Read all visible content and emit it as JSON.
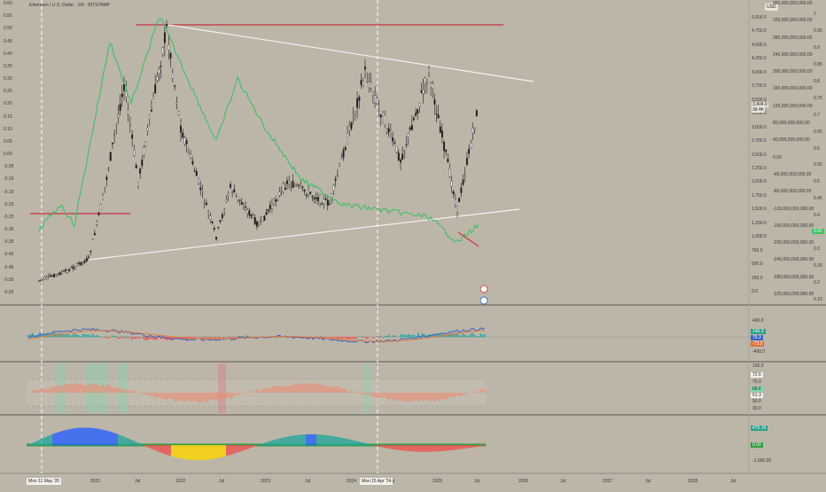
{
  "header": {
    "title": "Ethereum / U.S. Dollar · 1W · BITSTAMP",
    "currency": "USD"
  },
  "left_axis_ticks": [
    "0.60",
    "0.55",
    "0.50",
    "0.45",
    "0.40",
    "0.35",
    "0.30",
    "0.25",
    "0.20",
    "0.15",
    "0.10",
    "0.05",
    "0.00",
    "-0.05",
    "-0.10",
    "-0.15",
    "-0.20",
    "-0.25",
    "-0.30",
    "-0.35",
    "-0.40",
    "-0.45",
    "-0.50",
    "-0.55"
  ],
  "price_axis_ticks": [
    "5,000.0",
    "4,750.0",
    "4,500.0",
    "4,250.0",
    "4,000.0",
    "3,750.0",
    "3,500.0",
    "3,250.0",
    "3,000.0",
    "2,750.0",
    "2,500.0",
    "2,250.0",
    "2,000.0",
    "1,750.0",
    "1,500.0",
    "1,250.0",
    "1,000.0",
    "750.0",
    "500.0",
    "250.0",
    "0.0"
  ],
  "big_axis_ticks": [
    "360,000,000,000.00",
    "320,000,000,000.00",
    "280,000,000,000.00",
    "240,000,000,000.00",
    "200,000,000,000.00",
    "160,000,000,000.00",
    "120,000,000,000.00",
    "80,000,000,000.00",
    "40,000,000,000.00",
    "0.00",
    "-40,000,000,000.00",
    "-80,000,000,000.00",
    "-120,000,000,000.00",
    "-160,000,000,000.00",
    "-200,000,000,000.00",
    "-240,000,000,000.00",
    "-280,000,000,000.00",
    "-320,000,000,000.00"
  ],
  "small_axis_ticks": [
    "1",
    "0.95",
    "0.9",
    "0.85",
    "0.8",
    "0.75",
    "0.7",
    "0.65",
    "0.6",
    "0.55",
    "0.5",
    "0.45",
    "0.4",
    "0.35",
    "0.3",
    "0.25",
    "0.2",
    "0.15"
  ],
  "price_labels": [
    "3,404.9",
    "3d 4h"
  ],
  "right_badge": "0.91",
  "macd_axis_ticks": [
    "400.0",
    "-400.0"
  ],
  "macd_badges": [
    "146.3",
    "75.3",
    "-73.0"
  ],
  "rsi_axis_ticks": [
    "100.0",
    "75.0",
    "50.0",
    "30.0"
  ],
  "rsi_badges": [
    "72.6",
    "69.6",
    "51.3"
  ],
  "osc_axis_ticks": [
    "-1,000.00"
  ],
  "osc_badges": [
    "475.16",
    "0.00"
  ],
  "time_axis": [
    "2021",
    "Jul",
    "2022",
    "Jul",
    "2023",
    "Jul",
    "2024",
    "Jul",
    "2025",
    "Jul",
    "2026",
    "Jul",
    "2027",
    "Jul",
    "2028",
    "Jul"
  ],
  "time_highlights": [
    "Mon 11 May '20",
    "Mon 15 Apr '24"
  ],
  "chart_data": {
    "type": "line",
    "timeframe": "1W",
    "ylim": [
      0,
      5000
    ],
    "price_points": [
      {
        "date": "2020-05",
        "price": 200
      },
      {
        "date": "2020-09",
        "price": 380
      },
      {
        "date": "2020-12",
        "price": 600
      },
      {
        "date": "2021-02",
        "price": 1700
      },
      {
        "date": "2021-05",
        "price": 3800
      },
      {
        "date": "2021-07",
        "price": 2000
      },
      {
        "date": "2021-11",
        "price": 4800
      },
      {
        "date": "2022-01",
        "price": 3000
      },
      {
        "date": "2022-06",
        "price": 1000
      },
      {
        "date": "2022-08",
        "price": 1900
      },
      {
        "date": "2022-12",
        "price": 1200
      },
      {
        "date": "2023-04",
        "price": 2000
      },
      {
        "date": "2023-10",
        "price": 1600
      },
      {
        "date": "2024-03",
        "price": 4000
      },
      {
        "date": "2024-08",
        "price": 2400
      },
      {
        "date": "2024-12",
        "price": 4000
      },
      {
        "date": "2025-04",
        "price": 1500
      },
      {
        "date": "2025-07",
        "price": 3400
      }
    ],
    "indicator_points": [
      {
        "date": "2020-05",
        "value": -0.3
      },
      {
        "date": "2020-08",
        "value": -0.2
      },
      {
        "date": "2020-10",
        "value": -0.28
      },
      {
        "date": "2021-03",
        "value": 0.45
      },
      {
        "date": "2021-06",
        "value": 0.2
      },
      {
        "date": "2021-10",
        "value": 0.55
      },
      {
        "date": "2022-02",
        "value": 0.3
      },
      {
        "date": "2022-06",
        "value": 0.05
      },
      {
        "date": "2022-09",
        "value": 0.3
      },
      {
        "date": "2023-01",
        "value": 0.1
      },
      {
        "date": "2023-06",
        "value": -0.1
      },
      {
        "date": "2023-12",
        "value": -0.2
      },
      {
        "date": "2024-05",
        "value": -0.22
      },
      {
        "date": "2024-12",
        "value": -0.25
      },
      {
        "date": "2025-04",
        "value": -0.35
      },
      {
        "date": "2025-07",
        "value": -0.28
      }
    ]
  }
}
